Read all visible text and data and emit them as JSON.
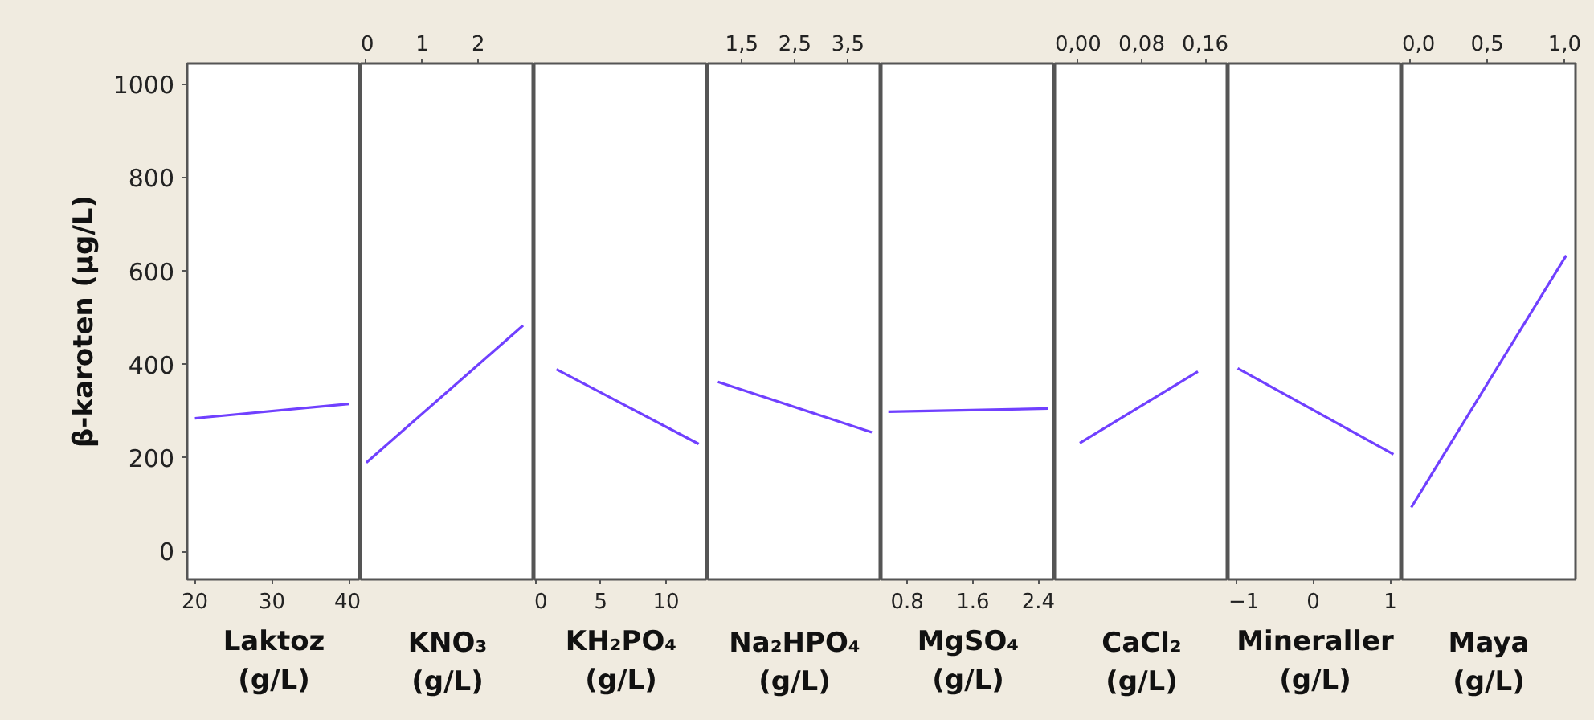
{
  "chart_data": [
    {
      "type": "line",
      "xlabel": "Laktoz\n(g/L)",
      "ylabel": "β-karoten (µg/L)",
      "x": [
        20,
        40
      ],
      "values": [
        285,
        316
      ],
      "color": "#7040ff",
      "xlim": [
        19,
        41.5
      ],
      "xticks": [
        20,
        30,
        40
      ],
      "ylim": [
        -60,
        1045
      ],
      "yticks": [
        0,
        200,
        400,
        600,
        800,
        1000
      ]
    },
    {
      "type": "line",
      "xlabel": "KNO₃\n(g/L)",
      "x": [
        0,
        2.8
      ],
      "values": [
        190,
        484
      ],
      "color": "#7040ff",
      "xlim": [
        -0.1,
        3.0
      ],
      "xticks": [
        0,
        1,
        2
      ],
      "ylim": [
        -60,
        1045
      ],
      "tick_labels": "x"
    },
    {
      "type": "line",
      "xlabel": "KH₂PO₄\n(g/L)",
      "x": [
        1.6,
        12.5
      ],
      "values": [
        390,
        230
      ],
      "color": "#7040ff",
      "xlim": [
        -0.1,
        13.2
      ],
      "xticks": [
        0,
        5,
        10
      ],
      "ylim": [
        -60,
        1045
      ],
      "tick_labels": "x"
    },
    {
      "type": "line",
      "xlabel": "Na₂HPO₄\n(g/L)",
      "x": [
        1.05,
        3.95
      ],
      "values": [
        363,
        255
      ],
      "color": "#7040ff",
      "xlim": [
        0.86,
        4.13
      ],
      "xticks": [
        {
          "value": 1.5,
          "label": "1,5"
        },
        {
          "value": 2.5,
          "label": "2,5"
        },
        {
          "value": 3.5,
          "label": "3,5"
        }
      ],
      "ylim": [
        -60,
        1045
      ],
      "tick_labels": "x"
    },
    {
      "type": "line",
      "xlabel": "MgSO₄\n(g/L)",
      "x": [
        0.57,
        2.52
      ],
      "values": [
        299,
        306
      ],
      "color": "#7040ff",
      "xlim": [
        0.485,
        2.6
      ],
      "xticks": [
        0.8,
        1.6,
        2.4
      ],
      "ylim": [
        -60,
        1045
      ],
      "tick_labels": "x"
    },
    {
      "type": "line",
      "xlabel": "CaCl₂\n(g/L)",
      "x": [
        0.003,
        0.15
      ],
      "values": [
        232,
        385
      ],
      "color": "#7040ff",
      "xlim": [
        -0.028,
        0.188
      ],
      "xticks": [
        {
          "value": 0,
          "label": "0,00"
        },
        {
          "value": 0.08,
          "label": "0,08"
        },
        {
          "value": 0.16,
          "label": "0,16"
        }
      ],
      "ylim": [
        -60,
        1045
      ],
      "tick_labels": "x"
    },
    {
      "type": "line",
      "xlabel": "Mineraller\n(g/L)",
      "x": [
        -0.98,
        1.04
      ],
      "values": [
        392,
        208
      ],
      "color": "#7040ff",
      "xlim": [
        -1.1,
        1.15
      ],
      "xticks": [
        -1,
        0,
        1
      ],
      "ylim": [
        -60,
        1045
      ],
      "tick_labels": "x"
    },
    {
      "type": "line",
      "xlabel": "Maya\n(g/L)",
      "x": [
        0.01,
        1.01
      ],
      "values": [
        94,
        634
      ],
      "color": "#7040ff",
      "xlim": [
        -0.05,
        1.07
      ],
      "xticks": [
        {
          "value": 0,
          "label": "0,0"
        },
        {
          "value": 0.5,
          "label": "0,5"
        },
        {
          "value": 1,
          "label": "1,0"
        }
      ],
      "ylim": [
        -60,
        1045
      ],
      "tick_labels": "x"
    }
  ]
}
